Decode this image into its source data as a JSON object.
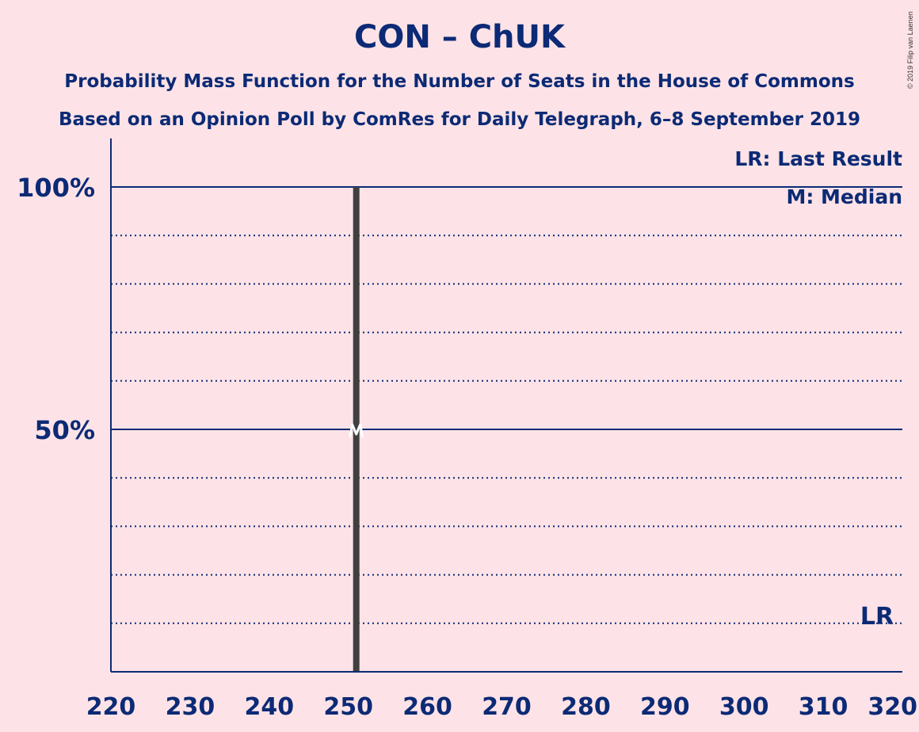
{
  "chart_data": {
    "type": "bar",
    "title": "CON – ChUK",
    "subtitle": [
      "Probability Mass Function for the Number of Seats in the House of Commons",
      "Based on an Opinion Poll by ComRes for Daily Telegraph, 6–8 September 2019"
    ],
    "x": [
      251
    ],
    "values": [
      100
    ],
    "xlim": [
      220,
      320
    ],
    "ylim": [
      0,
      110
    ],
    "x_ticks": [
      "220",
      "230",
      "240",
      "250",
      "260",
      "270",
      "280",
      "290",
      "300",
      "310",
      "320"
    ],
    "y_ticks": [
      {
        "value": 50,
        "label": "50%"
      },
      {
        "value": 100,
        "label": "100%"
      }
    ],
    "grid_dotted": [
      10,
      20,
      30,
      40,
      60,
      70,
      80,
      90
    ],
    "median": {
      "x": 251,
      "y": 50,
      "marker": "M"
    },
    "last_result": {
      "x": 318,
      "label": "LR"
    },
    "legend": [
      "LR: Last Result",
      "M: Median"
    ],
    "legend_placement": "top-right",
    "bar_color": "#404040",
    "axis_color": "#0c2a75",
    "background_color": "#fde3e7",
    "copyright": "© 2019 Filip van Laenen"
  }
}
